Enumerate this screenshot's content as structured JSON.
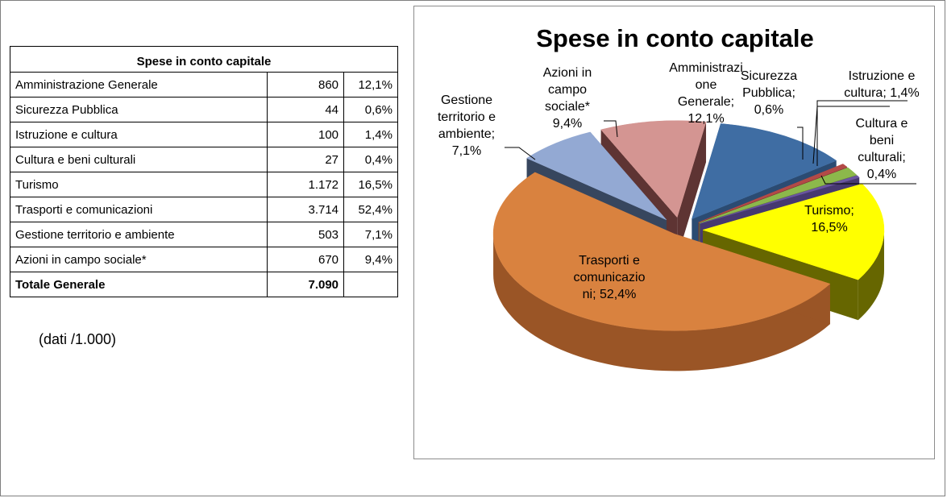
{
  "table": {
    "title": "Spese in conto capitale",
    "rows": [
      {
        "label": "Amministrazione  Generale",
        "value": "860",
        "pct": "12,1%"
      },
      {
        "label": "Sicurezza Pubblica",
        "value": "44",
        "pct": "0,6%"
      },
      {
        "label": "Istruzione e cultura",
        "value": "100",
        "pct": "1,4%"
      },
      {
        "label": "Cultura e beni culturali",
        "value": "27",
        "pct": "0,4%"
      },
      {
        "label": "Turismo",
        "value": "1.172",
        "pct": "16,5%"
      },
      {
        "label": "Trasporti e comunicazioni",
        "value": "3.714",
        "pct": "52,4%"
      },
      {
        "label": "Gestione territorio e ambiente",
        "value": "503",
        "pct": "7,1%"
      },
      {
        "label": "Azioni in campo sociale*",
        "value": "670",
        "pct": "9,4%"
      }
    ],
    "total_label": "Totale Generale",
    "total_value": "7.090",
    "total_pct": ""
  },
  "note": "(dati /1.000)",
  "chart_data": {
    "type": "pie",
    "title": "Spese in conto capitale",
    "three_d": true,
    "exploded": true,
    "legend": "none",
    "slices": [
      {
        "label": "Amministrazione Generale",
        "value": 860,
        "pct": 12.1,
        "color": "#3F6DA3",
        "side": "#2B4B72",
        "display": [
          "Amministrazi",
          "one",
          "Generale;",
          "12,1%"
        ]
      },
      {
        "label": "Sicurezza Pubblica",
        "value": 44,
        "pct": 0.6,
        "color": "#B34A47",
        "side": "#7D3331",
        "display": [
          "Sicurezza",
          "Pubblica;",
          "0,6%"
        ]
      },
      {
        "label": "Istruzione e cultura",
        "value": 100,
        "pct": 1.4,
        "color": "#8CB84B",
        "side": "#5E7E31",
        "display": [
          "Istruzione e",
          "cultura; 1,4%"
        ]
      },
      {
        "label": "Cultura e beni culturali",
        "value": 27,
        "pct": 0.4,
        "color": "#6A55A0",
        "side": "#463870",
        "display": [
          "Cultura e",
          "beni",
          "culturali;",
          "0,4%"
        ]
      },
      {
        "label": "Turismo",
        "value": 1172,
        "pct": 16.5,
        "color": "#FFFF00",
        "side": "#666600",
        "display": [
          "Turismo;",
          "16,5%"
        ]
      },
      {
        "label": "Trasporti e comunicazioni",
        "value": 3714,
        "pct": 52.4,
        "color": "#D9823F",
        "side": "#9A5526",
        "display": [
          "Trasporti e",
          "comunicazio",
          "ni; 52,4%"
        ]
      },
      {
        "label": "Gestione territorio e ambiente",
        "value": 503,
        "pct": 7.1,
        "color": "#93A9D3",
        "side": "#37465E",
        "display": [
          "Gestione",
          "territorio e",
          "ambiente;",
          "7,1%"
        ]
      },
      {
        "label": "Azioni in campo sociale*",
        "value": 670,
        "pct": 9.4,
        "color": "#D49592",
        "side": "#5E3433",
        "display": [
          "Azioni in",
          "campo",
          "sociale*",
          "9,4%"
        ]
      }
    ]
  }
}
